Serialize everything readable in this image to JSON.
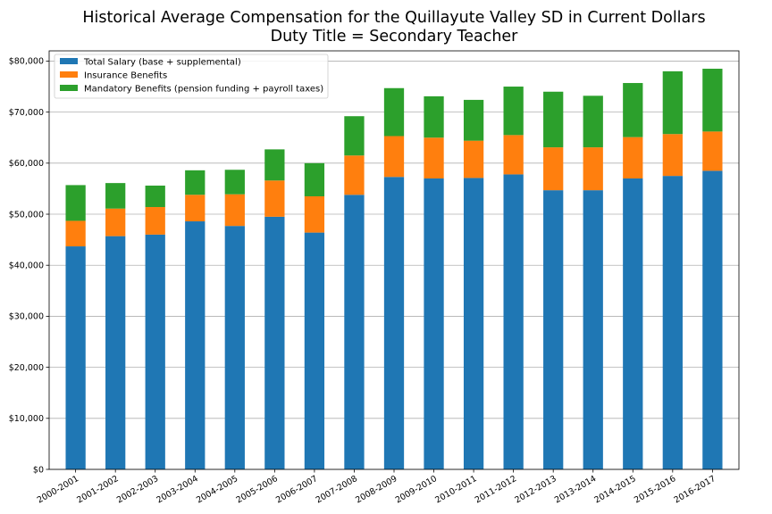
{
  "chart_data": {
    "type": "bar",
    "stacked": true,
    "title": "Historical Average Compensation for the Quillayute Valley SD in Current Dollars",
    "subtitle": "Duty Title = Secondary Teacher",
    "xlabel": "",
    "ylabel": "",
    "categories": [
      "2000-2001",
      "2001-2002",
      "2002-2003",
      "2003-2004",
      "2004-2005",
      "2005-2006",
      "2006-2007",
      "2007-2008",
      "2008-2009",
      "2009-2010",
      "2010-2011",
      "2011-2012",
      "2012-2013",
      "2013-2014",
      "2014-2015",
      "2015-2016",
      "2016-2017"
    ],
    "series": [
      {
        "name": "Total Salary (base + supplemental)",
        "color": "#1f77b4",
        "values": [
          43700,
          45700,
          46000,
          48600,
          47700,
          49500,
          46400,
          53800,
          57300,
          57000,
          57100,
          57800,
          54700,
          54700,
          57000,
          57500,
          58500
        ]
      },
      {
        "name": "Insurance Benefits",
        "color": "#ff7f0e",
        "values": [
          5000,
          5400,
          5400,
          5200,
          6200,
          7100,
          7100,
          7700,
          8000,
          8000,
          7300,
          7700,
          8400,
          8400,
          8100,
          8200,
          7700
        ]
      },
      {
        "name": "Mandatory Benefits (pension funding + payroll taxes)",
        "color": "#2ca02c",
        "values": [
          7000,
          5000,
          4200,
          4800,
          4800,
          6100,
          6500,
          7700,
          9400,
          8100,
          8000,
          9500,
          10900,
          10100,
          10600,
          12300,
          12300
        ]
      }
    ],
    "ylim": [
      0,
      82000
    ],
    "yticks": [
      0,
      10000,
      20000,
      30000,
      40000,
      50000,
      60000,
      70000,
      80000
    ],
    "ytick_labels": [
      "$0",
      "$10,000",
      "$20,000",
      "$30,000",
      "$40,000",
      "$50,000",
      "$60,000",
      "$70,000",
      "$80,000"
    ],
    "grid": "y",
    "legend_position": "upper-left"
  }
}
